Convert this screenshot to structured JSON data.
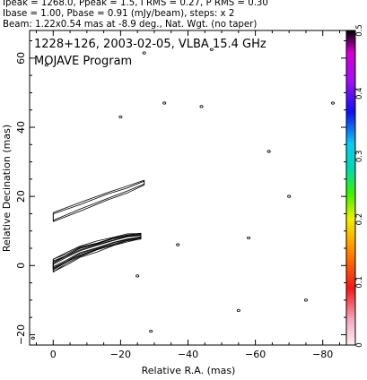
{
  "header": {
    "line1": "Ipeak = 1268.0, Ppeak = 1.5, I RMS = 0.27, P RMS = 0.30",
    "line2": "Ibase = 1.00, Pbase = 0.91 (mJy/beam), steps: x 2",
    "line3": "Beam: 1.22x0.54 mas at -8.9 deg., Nat. Wgt. (no taper)"
  },
  "chart_data": {
    "type": "contour",
    "title": "1228+126, 2003-02-05, VLBA 15.4 GHz",
    "subtitle": "MOJAVE Program",
    "xlabel": "Relative R.A. (mas)",
    "ylabel": "Relative Decination (mas)",
    "xlim": [
      7,
      -87
    ],
    "ylim": [
      -23,
      68
    ],
    "xticks": [
      0,
      -20,
      -40,
      -60,
      -80
    ],
    "xtick_labels": [
      "0",
      "−20",
      "−40",
      "−60",
      "−80"
    ],
    "yticks": [
      -20,
      0,
      20,
      40,
      60
    ],
    "ytick_labels": [
      "−20",
      "0",
      "20",
      "40",
      "60"
    ],
    "colorbar": {
      "range": [
        0,
        0.5
      ],
      "ticks": [
        0,
        0.1,
        0.2,
        0.3,
        0.4,
        0.5
      ],
      "tick_labels": [
        "0",
        "0.1",
        "0.2",
        "0.3",
        "0.4",
        "0.5"
      ]
    },
    "series": [
      {
        "values": [
          {
            "x": 0.0,
            "y": 0.0
          },
          {
            "x": -4.0,
            "y": 2.0
          },
          {
            "x": -8.0,
            "y": 4.0
          },
          {
            "x": -13.0,
            "y": 5.5
          },
          {
            "x": -18.0,
            "y": 7.0
          },
          {
            "x": -22.0,
            "y": 8.0
          },
          {
            "x": -26.0,
            "y": 8.5
          }
        ]
      },
      {
        "values": [
          {
            "x": 0.0,
            "y": 14.0
          },
          {
            "x": -8.0,
            "y": 17.0
          },
          {
            "x": -16.0,
            "y": 20.0
          },
          {
            "x": -22.0,
            "y": 22.0
          },
          {
            "x": -27.0,
            "y": 24.0
          }
        ]
      },
      {
        "values": [
          {
            "x": 2.0,
            "y": 58.0
          },
          {
            "x": -27.0,
            "y": 61.5
          },
          {
            "x": -33.0,
            "y": 47.0
          },
          {
            "x": -44.0,
            "y": 46.0
          },
          {
            "x": -64.0,
            "y": 33.0
          },
          {
            "x": -37.0,
            "y": 6.0
          },
          {
            "x": -70.0,
            "y": 20.0
          },
          {
            "x": -58.0,
            "y": 8.0
          },
          {
            "x": -20.0,
            "y": 43.0
          },
          {
            "x": -29.0,
            "y": -19.0
          },
          {
            "x": -55.0,
            "y": -13.0
          },
          {
            "x": -75.0,
            "y": -10.0
          },
          {
            "x": -25.0,
            "y": -3.0
          },
          {
            "x": 6.0,
            "y": -21.0
          },
          {
            "x": -47.0,
            "y": 62.5
          },
          {
            "x": -83.0,
            "y": 47.0
          }
        ]
      }
    ]
  }
}
